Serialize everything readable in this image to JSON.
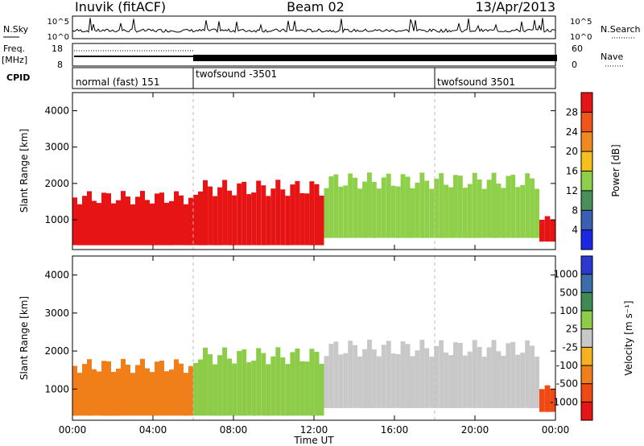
{
  "header": {
    "station": "Inuvik (fitACF)",
    "beam": "Beam 02",
    "date": "13/Apr/2013"
  },
  "top_panels": {
    "nsky_label": "N.Sky",
    "nsky_ticks": [
      "10^5",
      "10^0"
    ],
    "nsearch_label": "N.Search",
    "nsearch_ticks": [
      "10^5",
      "10^0"
    ],
    "freq_label": "Freq.",
    "freq_unit": "[MHz]",
    "freq_ticks": [
      "18",
      "8"
    ],
    "nave_label": "Nave",
    "nave_ticks": [
      "60",
      "0"
    ],
    "cpid_label": "CPID",
    "cpid_segments": [
      {
        "label": "normal (fast) 151",
        "start": "00:00",
        "end": "06:00"
      },
      {
        "label": "twofsound -3501",
        "start": "06:00",
        "end": "18:00"
      },
      {
        "label": "twofsound 3501",
        "start": "18:00",
        "end": "24:00"
      }
    ]
  },
  "chart_data": [
    {
      "type": "heatmap",
      "title": "",
      "xlabel": "",
      "ylabel": "Slant Range [km]",
      "yticks": [
        "1000",
        "2000",
        "3000",
        "4000"
      ],
      "ylim": [
        180,
        4500
      ],
      "xlim": [
        "00:00",
        "24:00"
      ],
      "colorbar": {
        "label": "Power [dB]",
        "ticks": [
          "4",
          "8",
          "12",
          "16",
          "20",
          "24",
          "28"
        ],
        "colors": [
          "#1a28e6",
          "#3b5fb5",
          "#4a8f5a",
          "#8fd04a",
          "#f5c01e",
          "#f08a1e",
          "#f2551c",
          "#e61414"
        ]
      },
      "bands": [
        {
          "start": 0.0,
          "end": 6.0,
          "low": 300,
          "high": 1800,
          "value": 28
        },
        {
          "start": 6.0,
          "end": 12.5,
          "low": 300,
          "high": 2100,
          "value": 28
        },
        {
          "start": 12.5,
          "end": 23.2,
          "low": 500,
          "high": 2300,
          "value": 12
        },
        {
          "start": 23.2,
          "end": 24.0,
          "low": 400,
          "high": 1100,
          "value": 28
        }
      ]
    },
    {
      "type": "heatmap",
      "title": "",
      "xlabel": "Time UT",
      "ylabel": "Slant Range [km]",
      "yticks": [
        "1000",
        "2000",
        "3000",
        "4000"
      ],
      "ylim": [
        180,
        4500
      ],
      "xticks": [
        "00:00",
        "04:00",
        "08:00",
        "12:00",
        "16:00",
        "20:00",
        "00:00"
      ],
      "colorbar": {
        "label": "Velocity [m s⁻¹]",
        "ticks": [
          "1000",
          "500",
          "100",
          "25",
          "-25",
          "-100",
          "-500",
          "-1000"
        ],
        "colors": [
          "#2a3ad0",
          "#3a6ea8",
          "#3f8a55",
          "#8ccc48",
          "#c8c8c8",
          "#f5b21e",
          "#f07f1a",
          "#f04a14",
          "#e61414"
        ]
      },
      "bands": [
        {
          "start": 0.0,
          "end": 6.0,
          "low": 300,
          "high": 1800,
          "value": -100
        },
        {
          "start": 6.0,
          "end": 12.5,
          "low": 300,
          "high": 2100,
          "value": 100
        },
        {
          "start": 12.5,
          "end": 23.2,
          "low": 500,
          "high": 2300,
          "value": 25
        },
        {
          "start": 23.2,
          "end": 24.0,
          "low": 400,
          "high": 1100,
          "value": -500
        }
      ]
    }
  ]
}
